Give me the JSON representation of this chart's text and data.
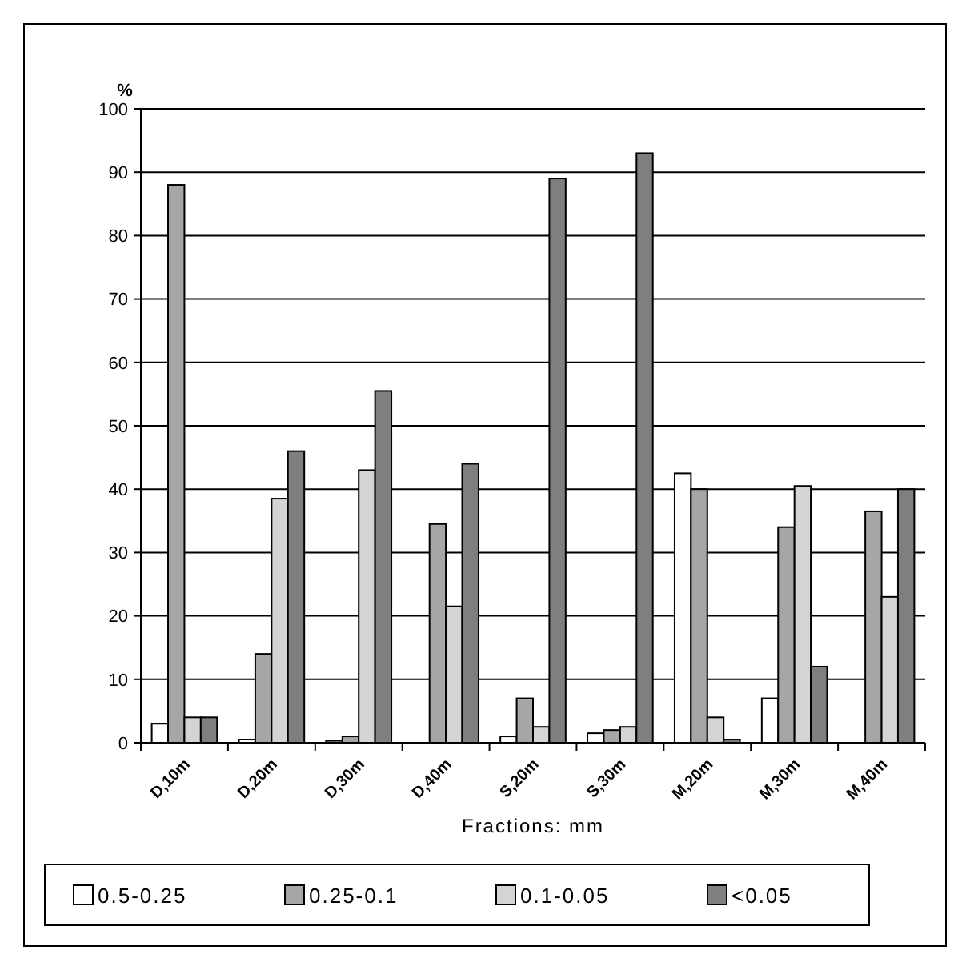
{
  "chart_data": {
    "type": "bar",
    "ylabel": "%",
    "xlabel": "Fractions: mm",
    "categories": [
      "D,10m",
      "D,20m",
      "D,30m",
      "D,40m",
      "S,20m",
      "S,30m",
      "M,20m",
      "M,30m",
      "M,40m"
    ],
    "series": [
      {
        "name": "0.5-0.25",
        "color": "#ffffff",
        "values": [
          3,
          0.5,
          0.3,
          0,
          1,
          1.5,
          42.5,
          7,
          0
        ]
      },
      {
        "name": "0.25-0.1",
        "color": "#a6a6a6",
        "values": [
          88,
          14,
          1,
          34.5,
          7,
          2,
          40,
          34,
          36.5
        ]
      },
      {
        "name": "0.1-0.05",
        "color": "#d4d4d4",
        "values": [
          4,
          38.5,
          43,
          21.5,
          2.5,
          2.5,
          4,
          40.5,
          23
        ]
      },
      {
        "name": "<0.05",
        "color": "#7f7f7f",
        "values": [
          4,
          46,
          55.5,
          44,
          89,
          93,
          0.5,
          12,
          40
        ]
      }
    ],
    "ylim": [
      0,
      100
    ],
    "yticks": [
      0,
      10,
      20,
      30,
      40,
      50,
      60,
      70,
      80,
      90,
      100
    ],
    "grid": "y",
    "legend": "bottom"
  }
}
